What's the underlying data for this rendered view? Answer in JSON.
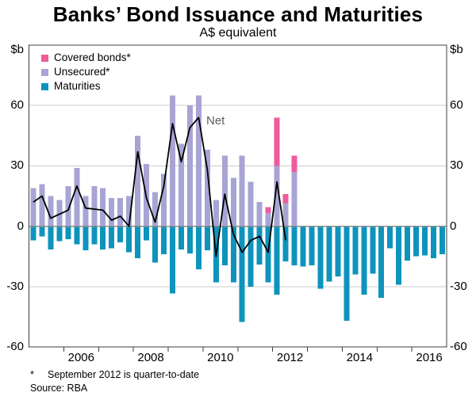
{
  "title": "Banks’ Bond Issuance and Maturities",
  "subtitle": "A$ equivalent",
  "unit_label": "$b",
  "net_label": "Net",
  "footnote": {
    "marker": "*",
    "text": "September 2012 is quarter-to-date"
  },
  "source": "Source: RBA",
  "colors": {
    "covered": "#ee5c9c",
    "unsecured": "#a8a4d4",
    "maturities": "#0e94bc",
    "net_line": "#000000",
    "grid": "#cbcbcb",
    "zero_line": "#8c8c8c",
    "frame": "#3f3f3f",
    "net_label_color": "#5a5a5a"
  },
  "legend": [
    {
      "label": "Covered bonds*",
      "key": "covered"
    },
    {
      "label": "Unsecured*",
      "key": "unsecured"
    },
    {
      "label": "Maturities",
      "key": "maturities"
    }
  ],
  "y_axis": {
    "min": -60,
    "max": 90,
    "ticks": [
      60,
      30,
      0,
      -30,
      -60
    ],
    "gridlines": [
      60,
      30,
      -30
    ]
  },
  "x_axis": {
    "start_year": 2005,
    "end_year_exclusive": 2017,
    "tick_years": [
      2006,
      2007,
      2008,
      2009,
      2010,
      2011,
      2012,
      2013,
      2014,
      2015,
      2016
    ],
    "year_labels": [
      "2006",
      "2008",
      "2010",
      "2012",
      "2014",
      "2016"
    ]
  },
  "chart_data": {
    "type": "bar",
    "title": "Banks’ Bond Issuance and Maturities",
    "subtitle": "A$ equivalent",
    "ylabel": "$b",
    "ylim": [
      -60,
      90
    ],
    "legend_position": "top-left",
    "grid": "horizontal",
    "quarters": [
      "2005Q1",
      "2005Q2",
      "2005Q3",
      "2005Q4",
      "2006Q1",
      "2006Q2",
      "2006Q3",
      "2006Q4",
      "2007Q1",
      "2007Q2",
      "2007Q3",
      "2007Q4",
      "2008Q1",
      "2008Q2",
      "2008Q3",
      "2008Q4",
      "2009Q1",
      "2009Q2",
      "2009Q3",
      "2009Q4",
      "2010Q1",
      "2010Q2",
      "2010Q3",
      "2010Q4",
      "2011Q1",
      "2011Q2",
      "2011Q3",
      "2011Q4",
      "2012Q1",
      "2012Q2",
      "2012Q3",
      "2012Q4",
      "2013Q1",
      "2013Q2",
      "2013Q3",
      "2013Q4",
      "2014Q1",
      "2014Q2",
      "2014Q3",
      "2014Q4",
      "2015Q1",
      "2015Q2",
      "2015Q3",
      "2015Q4",
      "2016Q1",
      "2016Q2",
      "2016Q3",
      "2016Q4"
    ],
    "series": [
      {
        "name": "Unsecured*",
        "stack": "issuance",
        "color_key": "unsecured",
        "values": [
          19,
          21,
          15,
          13,
          20,
          29,
          15,
          20,
          19,
          14,
          14,
          15,
          45,
          31,
          17,
          26,
          65,
          41,
          60,
          65,
          38,
          13,
          35,
          24,
          35,
          22,
          12,
          6.5,
          30,
          11.5,
          27,
          null,
          null,
          null,
          null,
          null,
          null,
          null,
          null,
          null,
          null,
          null,
          null,
          null,
          null,
          null,
          null,
          null
        ]
      },
      {
        "name": "Covered bonds*",
        "stack": "issuance",
        "color_key": "covered",
        "values": [
          0,
          0,
          0,
          0,
          0,
          0,
          0,
          0,
          0,
          0,
          0,
          0,
          0,
          0,
          0,
          0,
          0,
          0,
          0,
          0,
          0,
          0,
          0,
          0,
          0,
          0,
          0,
          3,
          24,
          4.5,
          8,
          null,
          null,
          null,
          null,
          null,
          null,
          null,
          null,
          null,
          null,
          null,
          null,
          null,
          null,
          null,
          null,
          null
        ]
      },
      {
        "name": "Maturities",
        "stack": "maturities",
        "color_key": "maturities",
        "values": [
          -7,
          -5,
          -11.5,
          -7.5,
          -6.5,
          -9,
          -12,
          -9,
          -11.5,
          -11,
          -8,
          -13,
          -16,
          -7,
          -18,
          -14,
          -33.5,
          -11.5,
          -13.5,
          -21.5,
          -12,
          -28,
          -19.5,
          -28,
          -47.5,
          -30,
          -19,
          -28,
          -34,
          -17.5,
          -19.5,
          -20,
          -19.5,
          -31,
          -27.5,
          -25,
          -47,
          -24,
          -34,
          -23.5,
          -35.5,
          -11,
          -29,
          -17,
          -15,
          -14.5,
          -16,
          -14
        ]
      },
      {
        "name": "Net",
        "type": "line",
        "color_key": "net_line",
        "values": [
          12,
          15,
          4,
          6,
          8,
          20,
          9,
          8.5,
          8,
          3,
          5,
          0,
          37,
          14,
          2,
          20,
          51,
          32,
          49,
          54,
          28,
          -15,
          16,
          -4,
          -13,
          -7,
          -5,
          -13,
          22,
          -7,
          null,
          null,
          null,
          null,
          null,
          null,
          null,
          null,
          null,
          null,
          null,
          null,
          null,
          null,
          null,
          null,
          null,
          null
        ]
      }
    ]
  }
}
